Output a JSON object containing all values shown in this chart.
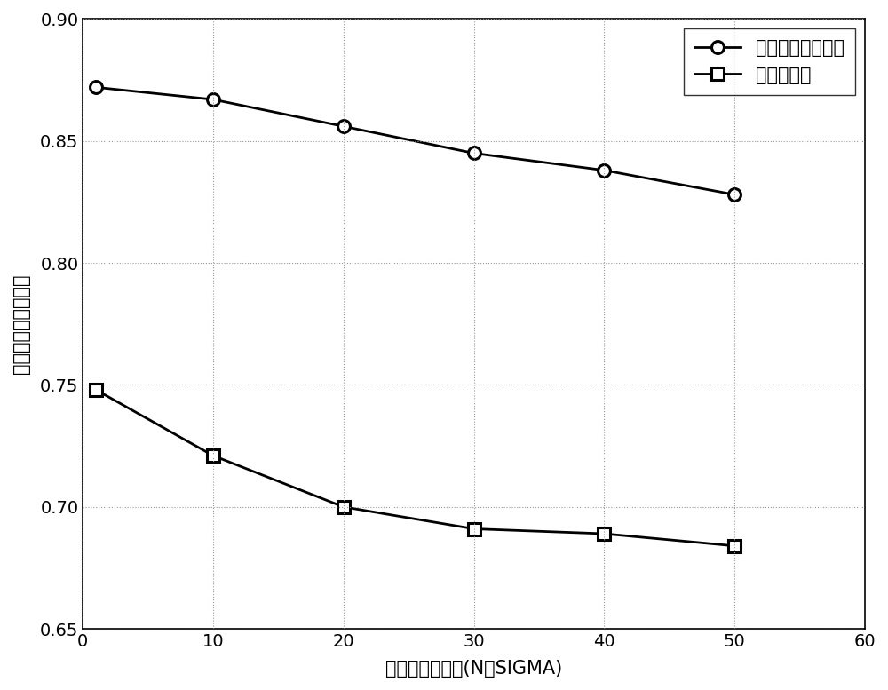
{
  "x": [
    1,
    10,
    20,
    30,
    40,
    50
  ],
  "line1_y": [
    0.872,
    0.867,
    0.856,
    0.845,
    0.838,
    0.828
  ],
  "line2_y": [
    0.748,
    0.721,
    0.7,
    0.691,
    0.689,
    0.684
  ],
  "line1_label": "近邻点传播聚类法",
  "line2_label": "简单聚类法",
  "xlabel": "观测误差标准差(N個SIGMA)",
  "ylabel": "辐射源群聚类正确率",
  "xlim": [
    0,
    60
  ],
  "ylim": [
    0.65,
    0.9
  ],
  "yticks": [
    0.65,
    0.7,
    0.75,
    0.8,
    0.85,
    0.9
  ],
  "xticks": [
    0,
    10,
    20,
    30,
    40,
    50,
    60
  ],
  "line_color": "#000000",
  "linewidth": 2.0,
  "markersize": 10,
  "marker1": "o",
  "marker2": "s",
  "grid_color": "#999999",
  "bg_color": "#ffffff",
  "legend_fontsize": 15,
  "axis_fontsize": 15,
  "tick_fontsize": 14
}
